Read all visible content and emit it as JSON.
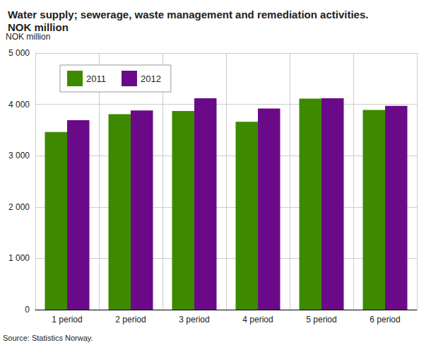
{
  "chart_data": {
    "type": "bar",
    "title": "Water supply; sewerage, waste management and remediation activities.\nNOK million",
    "ylabel": "NOK million",
    "source": "Source: Statistics Norway.",
    "categories": [
      "1 period",
      "2 period",
      "3 period",
      "4 period",
      "5 period",
      "6 period"
    ],
    "series": [
      {
        "name": "2011",
        "color": "#3d8a00",
        "values": [
          3460,
          3810,
          3870,
          3660,
          4110,
          3890
        ]
      },
      {
        "name": "2012",
        "color": "#6a0a88",
        "values": [
          3690,
          3880,
          4120,
          3920,
          4120,
          3970
        ]
      }
    ],
    "ylim": [
      0,
      5000
    ],
    "yticks": [
      0,
      {
        "value": 1000,
        "label": "1 000"
      },
      {
        "value": 2000,
        "label": "2 000"
      },
      {
        "value": 3000,
        "label": "3 000"
      },
      {
        "value": 4000,
        "label": "4 000"
      },
      {
        "value": 5000,
        "label": "5 000"
      }
    ],
    "grid": true,
    "legend": "upper left"
  }
}
